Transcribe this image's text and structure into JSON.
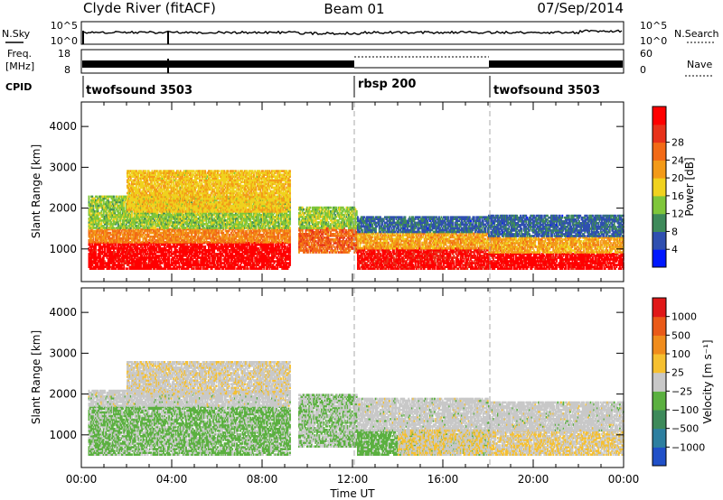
{
  "header": {
    "station": "Clyde River (fitACF)",
    "beam": "Beam 01",
    "date": "07/Sep/2014"
  },
  "status_panels": {
    "nsky_label": "N.Sky",
    "nsearch_label": "N.Search",
    "nsky_ticks": [
      "10^5",
      "10^0"
    ],
    "nsearch_ticks": [
      "10^5",
      "10^0"
    ],
    "freq_label_line1": "Freq.",
    "freq_label_line2": "[MHz]",
    "freq_ticks": [
      "18",
      "8"
    ],
    "nave_label": "Nave",
    "nave_ticks": [
      "60",
      "0"
    ],
    "cpid_label": "CPID",
    "cpid_segments": [
      {
        "name": "twofsound 3503",
        "start_hour": 0
      },
      {
        "name": "rbsp 200",
        "start_hour": 12
      },
      {
        "name": "twofsound 3503",
        "start_hour": 18
      }
    ]
  },
  "axes": {
    "xlabel": "Time UT",
    "x_ticks": [
      "00:00",
      "04:00",
      "08:00",
      "12:00",
      "16:00",
      "20:00",
      "00:00"
    ],
    "ylabel": "Slant Range [km]",
    "y_ticks": [
      "1000",
      "2000",
      "3000",
      "4000"
    ]
  },
  "colorbars": {
    "power": {
      "title": "Power [dB]",
      "ticks": [
        "4",
        "8",
        "12",
        "16",
        "20",
        "24",
        "28"
      ],
      "colors": [
        "#0018ff",
        "#2f4fb0",
        "#3e8a5a",
        "#7fc63a",
        "#f0d21e",
        "#f39a18",
        "#f26a16",
        "#e8321a",
        "#ff0000"
      ]
    },
    "velocity": {
      "title": "Velocity [m s⁻¹]",
      "ticks": [
        "1000",
        "500",
        "100",
        "25",
        "−25",
        "−100",
        "−500",
        "−1000"
      ],
      "colors": [
        "#2050c8",
        "#2d7fa0",
        "#3d8a5a",
        "#5bb040",
        "#c8c8c8",
        "#f6c030",
        "#f08c1c",
        "#ea5a18",
        "#e01818"
      ]
    }
  },
  "chart_data": [
    {
      "type": "heatmap",
      "panel": "Power",
      "xlabel": "Time UT",
      "ylabel": "Slant Range [km]",
      "xlim": [
        0,
        24
      ],
      "ylim": [
        200,
        4600
      ],
      "colorbar_label": "Power [dB]",
      "colorbar_range": [
        0,
        30
      ],
      "regions": [
        {
          "x": [
            0.3,
            9.2
          ],
          "y": [
            500,
            1150
          ],
          "value": 29
        },
        {
          "x": [
            0.3,
            9.2
          ],
          "y": [
            1150,
            1500
          ],
          "value": 20
        },
        {
          "x": [
            0.3,
            9.2
          ],
          "y": [
            1500,
            2300
          ],
          "value": 12
        },
        {
          "x": [
            2.0,
            9.2
          ],
          "y": [
            1900,
            2900
          ],
          "value": 16
        },
        {
          "x": [
            9.6,
            12.2
          ],
          "y": [
            900,
            1500
          ],
          "value": 22
        },
        {
          "x": [
            9.6,
            12.2
          ],
          "y": [
            1500,
            2000
          ],
          "value": 12
        },
        {
          "x": [
            12.2,
            18.0
          ],
          "y": [
            500,
            1000
          ],
          "value": 28
        },
        {
          "x": [
            12.2,
            18.0
          ],
          "y": [
            1000,
            1400
          ],
          "value": 18
        },
        {
          "x": [
            12.2,
            18.0
          ],
          "y": [
            1400,
            1800
          ],
          "value": 6
        },
        {
          "x": [
            18.0,
            24.0
          ],
          "y": [
            500,
            900
          ],
          "value": 29
        },
        {
          "x": [
            18.0,
            24.0
          ],
          "y": [
            900,
            1300
          ],
          "value": 18
        },
        {
          "x": [
            18.0,
            24.0
          ],
          "y": [
            1300,
            1800
          ],
          "value": 6
        }
      ]
    },
    {
      "type": "heatmap",
      "panel": "Velocity",
      "xlabel": "Time UT",
      "ylabel": "Slant Range [km]",
      "xlim": [
        0,
        24
      ],
      "ylim": [
        200,
        4600
      ],
      "colorbar_label": "Velocity [m s⁻¹]",
      "colorbar_range": [
        -1000,
        1000
      ],
      "regions": [
        {
          "x": [
            0.3,
            9.2
          ],
          "y": [
            500,
            1700
          ],
          "value": -150
        },
        {
          "x": [
            0.3,
            9.2
          ],
          "y": [
            1700,
            2100
          ],
          "value": 0
        },
        {
          "x": [
            2.0,
            9.2
          ],
          "y": [
            2000,
            2800
          ],
          "value": 50
        },
        {
          "x": [
            9.6,
            12.2
          ],
          "y": [
            700,
            2000
          ],
          "value": -100
        },
        {
          "x": [
            12.2,
            18.0
          ],
          "y": [
            500,
            1100
          ],
          "value": -200
        },
        {
          "x": [
            12.2,
            18.0
          ],
          "y": [
            1100,
            1900
          ],
          "value": 0
        },
        {
          "x": [
            14.0,
            24.0
          ],
          "y": [
            500,
            1100
          ],
          "value": 100
        },
        {
          "x": [
            18.0,
            24.0
          ],
          "y": [
            1100,
            1800
          ],
          "value": 0
        }
      ]
    }
  ]
}
